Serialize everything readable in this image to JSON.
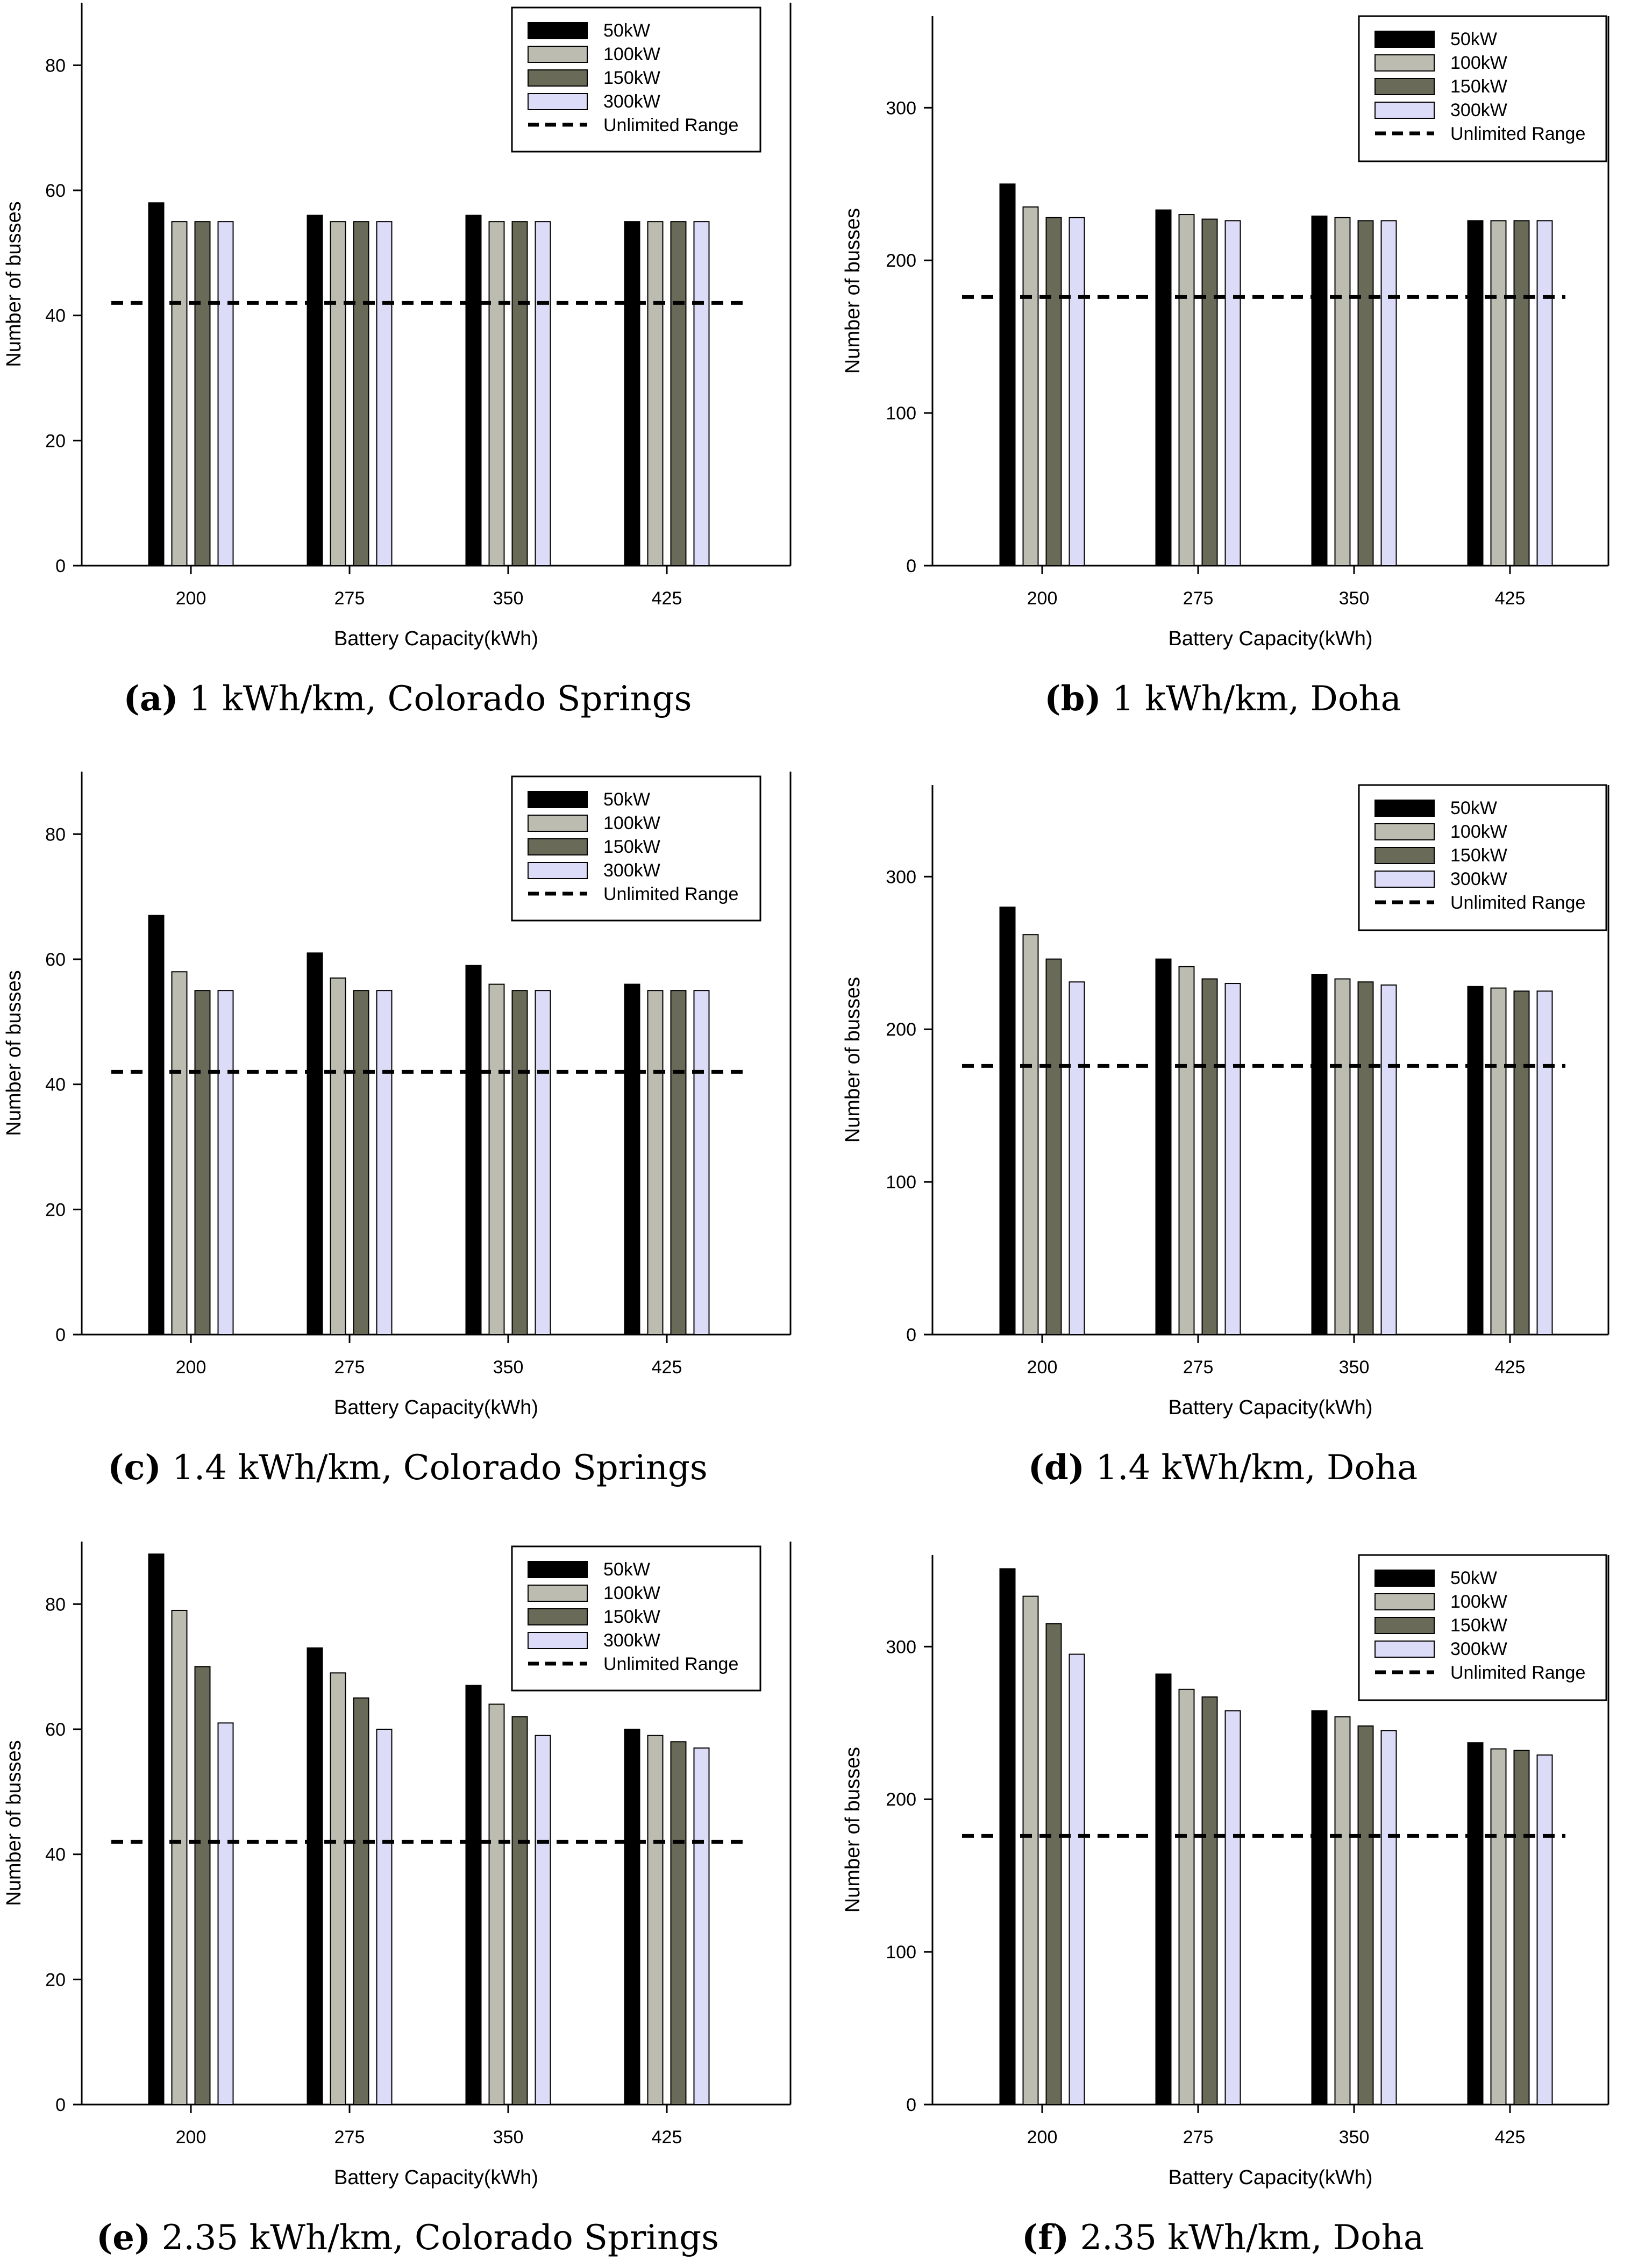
{
  "colors": {
    "50kW": "#000000",
    "100kW": "#bcbcb1",
    "150kW": "#6a6a58",
    "300kW": "#dcdcf8",
    "axis": "#000000",
    "unlimited_line": "#000000"
  },
  "panels": [
    {
      "caption_label": "(a)",
      "caption_text": "1 kWh/km, Colorado Springs",
      "chart_data": {
        "type": "bar",
        "title": "",
        "xlabel": "Battery Capacity(kWh)",
        "ylabel": "Number of busses",
        "categories": [
          "200",
          "275",
          "350",
          "425"
        ],
        "ylim": [
          0,
          90
        ],
        "yticks": [
          0,
          20,
          40,
          60,
          80
        ],
        "series": [
          {
            "name": "50kW",
            "values": [
              58,
              56,
              56,
              55
            ]
          },
          {
            "name": "100kW",
            "values": [
              55,
              55,
              55,
              55
            ]
          },
          {
            "name": "150kW",
            "values": [
              55,
              55,
              55,
              55
            ]
          },
          {
            "name": "300kW",
            "values": [
              55,
              55,
              55,
              55
            ]
          }
        ],
        "reference_line": {
          "name": "Unlimited Range",
          "value": 42,
          "style": "dashed"
        },
        "legend_position": "top-right",
        "grid": false
      }
    },
    {
      "caption_label": "(b)",
      "caption_text": "1 kWh/km, Doha",
      "chart_data": {
        "type": "bar",
        "title": "",
        "xlabel": "Battery Capacity(kWh)",
        "ylabel": "Number of busses",
        "categories": [
          "200",
          "275",
          "350",
          "425"
        ],
        "ylim": [
          0,
          360
        ],
        "yticks": [
          0,
          100,
          200,
          300
        ],
        "series": [
          {
            "name": "50kW",
            "values": [
              250,
              233,
              229,
              226
            ]
          },
          {
            "name": "100kW",
            "values": [
              235,
              230,
              228,
              226
            ]
          },
          {
            "name": "150kW",
            "values": [
              228,
              227,
              226,
              226
            ]
          },
          {
            "name": "300kW",
            "values": [
              228,
              226,
              226,
              226
            ]
          }
        ],
        "reference_line": {
          "name": "Unlimited Range",
          "value": 176,
          "style": "dashed"
        },
        "legend_position": "top-right",
        "grid": false
      }
    },
    {
      "caption_label": "(c)",
      "caption_text": "1.4 kWh/km, Colorado Springs",
      "chart_data": {
        "type": "bar",
        "title": "",
        "xlabel": "Battery Capacity(kWh)",
        "ylabel": "Number of busses",
        "categories": [
          "200",
          "275",
          "350",
          "425"
        ],
        "ylim": [
          0,
          90
        ],
        "yticks": [
          0,
          20,
          40,
          60,
          80
        ],
        "series": [
          {
            "name": "50kW",
            "values": [
              67,
              61,
              59,
              56
            ]
          },
          {
            "name": "100kW",
            "values": [
              58,
              57,
              56,
              55
            ]
          },
          {
            "name": "150kW",
            "values": [
              55,
              55,
              55,
              55
            ]
          },
          {
            "name": "300kW",
            "values": [
              55,
              55,
              55,
              55
            ]
          }
        ],
        "reference_line": {
          "name": "Unlimited Range",
          "value": 42,
          "style": "dashed"
        },
        "legend_position": "top-right",
        "grid": false
      }
    },
    {
      "caption_label": "(d)",
      "caption_text": "1.4 kWh/km, Doha",
      "chart_data": {
        "type": "bar",
        "title": "",
        "xlabel": "Battery Capacity(kWh)",
        "ylabel": "Number of busses",
        "categories": [
          "200",
          "275",
          "350",
          "425"
        ],
        "ylim": [
          0,
          360
        ],
        "yticks": [
          0,
          100,
          200,
          300
        ],
        "series": [
          {
            "name": "50kW",
            "values": [
              280,
              246,
              236,
              228
            ]
          },
          {
            "name": "100kW",
            "values": [
              262,
              241,
              233,
              227
            ]
          },
          {
            "name": "150kW",
            "values": [
              246,
              233,
              231,
              225
            ]
          },
          {
            "name": "300kW",
            "values": [
              231,
              230,
              229,
              225
            ]
          }
        ],
        "reference_line": {
          "name": "Unlimited Range",
          "value": 176,
          "style": "dashed"
        },
        "legend_position": "top-right",
        "grid": false
      }
    },
    {
      "caption_label": "(e)",
      "caption_text": "2.35 kWh/km, Colorado Springs",
      "chart_data": {
        "type": "bar",
        "title": "",
        "xlabel": "Battery Capacity(kWh)",
        "ylabel": "Number of busses",
        "categories": [
          "200",
          "275",
          "350",
          "425"
        ],
        "ylim": [
          0,
          90
        ],
        "yticks": [
          0,
          20,
          40,
          60,
          80
        ],
        "series": [
          {
            "name": "50kW",
            "values": [
              88,
              73,
              67,
              60
            ]
          },
          {
            "name": "100kW",
            "values": [
              79,
              69,
              64,
              59
            ]
          },
          {
            "name": "150kW",
            "values": [
              70,
              65,
              62,
              58
            ]
          },
          {
            "name": "300kW",
            "values": [
              61,
              60,
              59,
              57
            ]
          }
        ],
        "reference_line": {
          "name": "Unlimited Range",
          "value": 42,
          "style": "dashed"
        },
        "legend_position": "top-right",
        "grid": false
      }
    },
    {
      "caption_label": "(f)",
      "caption_text": "2.35 kWh/km, Doha",
      "chart_data": {
        "type": "bar",
        "title": "",
        "xlabel": "Battery Capacity(kWh)",
        "ylabel": "Number of busses",
        "categories": [
          "200",
          "275",
          "350",
          "425"
        ],
        "ylim": [
          0,
          360
        ],
        "yticks": [
          0,
          100,
          200,
          300
        ],
        "series": [
          {
            "name": "50kW",
            "values": [
              351,
              282,
              258,
              237
            ]
          },
          {
            "name": "100kW",
            "values": [
              333,
              272,
              254,
              233
            ]
          },
          {
            "name": "150kW",
            "values": [
              315,
              267,
              248,
              232
            ]
          },
          {
            "name": "300kW",
            "values": [
              295,
              258,
              245,
              229
            ]
          }
        ],
        "reference_line": {
          "name": "Unlimited Range",
          "value": 176,
          "style": "dashed"
        },
        "legend_position": "top-right",
        "grid": false
      }
    }
  ]
}
